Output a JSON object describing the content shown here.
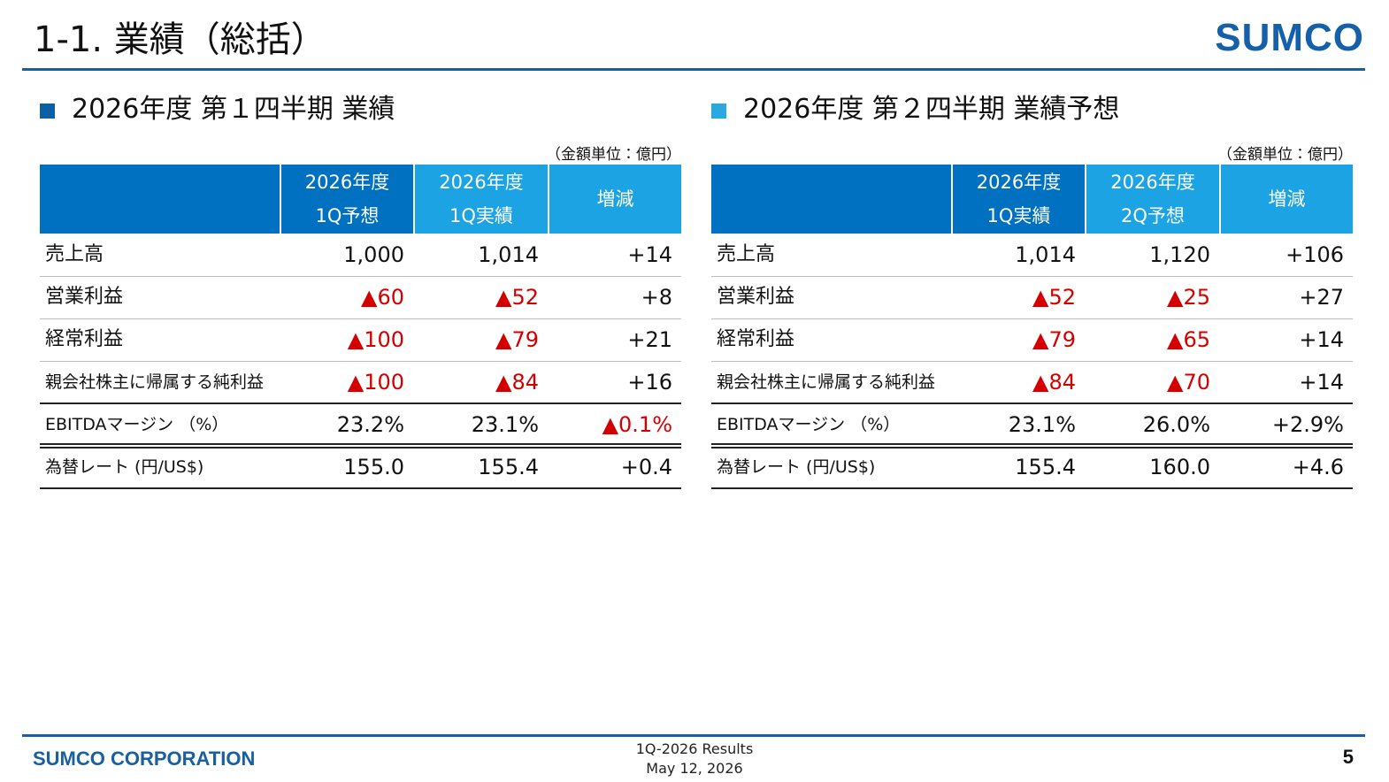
{
  "header": {
    "title": "1-1. 業績（総括）",
    "logo": "SUMCO"
  },
  "sections": [
    {
      "title": "2026年度 第１四半期 業績",
      "unit": "（金額単位：億円）",
      "table": {
        "columns": [
          [
            "2026年度",
            "1Q予想"
          ],
          [
            "2026年度",
            "1Q実績"
          ],
          [
            "増減"
          ]
        ],
        "rows": [
          {
            "label": "売上高",
            "cells": [
              "1,000",
              "1,014",
              "+14"
            ]
          },
          {
            "label": "営業利益",
            "cells": [
              "▲60",
              "▲52",
              "+8"
            ]
          },
          {
            "label": "経常利益",
            "cells": [
              "▲100",
              "▲79",
              "+21"
            ]
          },
          {
            "label": "親会社株主に帰属する純利益",
            "cells": [
              "▲100",
              "▲84",
              "+16"
            ]
          },
          {
            "label": "EBITDAマージン （%）",
            "cells": [
              "23.2%",
              "23.1%",
              "▲0.1%"
            ]
          },
          {
            "label": "為替レート (円/US$)",
            "cells": [
              "155.0",
              "155.4",
              "+0.4"
            ]
          }
        ]
      }
    },
    {
      "title": "2026年度 第２四半期 業績予想",
      "unit": "（金額単位：億円）",
      "table": {
        "columns": [
          [
            "2026年度",
            "1Q実績"
          ],
          [
            "2026年度",
            "2Q予想"
          ],
          [
            "増減"
          ]
        ],
        "rows": [
          {
            "label": "売上高",
            "cells": [
              "1,014",
              "1,120",
              "+106"
            ]
          },
          {
            "label": "営業利益",
            "cells": [
              "▲52",
              "▲25",
              "+27"
            ]
          },
          {
            "label": "経常利益",
            "cells": [
              "▲79",
              "▲65",
              "+14"
            ]
          },
          {
            "label": "親会社株主に帰属する純利益",
            "cells": [
              "▲84",
              "▲70",
              "+14"
            ]
          },
          {
            "label": "EBITDAマージン （%）",
            "cells": [
              "23.1%",
              "26.0%",
              "+2.9%"
            ]
          },
          {
            "label": "為替レート (円/US$)",
            "cells": [
              "155.4",
              "160.0",
              "+4.6"
            ]
          }
        ]
      }
    }
  ],
  "footer": {
    "company": "SUMCO CORPORATION",
    "lines": [
      "1Q-2026 Results",
      "May 12, 2026"
    ],
    "page": "5"
  }
}
